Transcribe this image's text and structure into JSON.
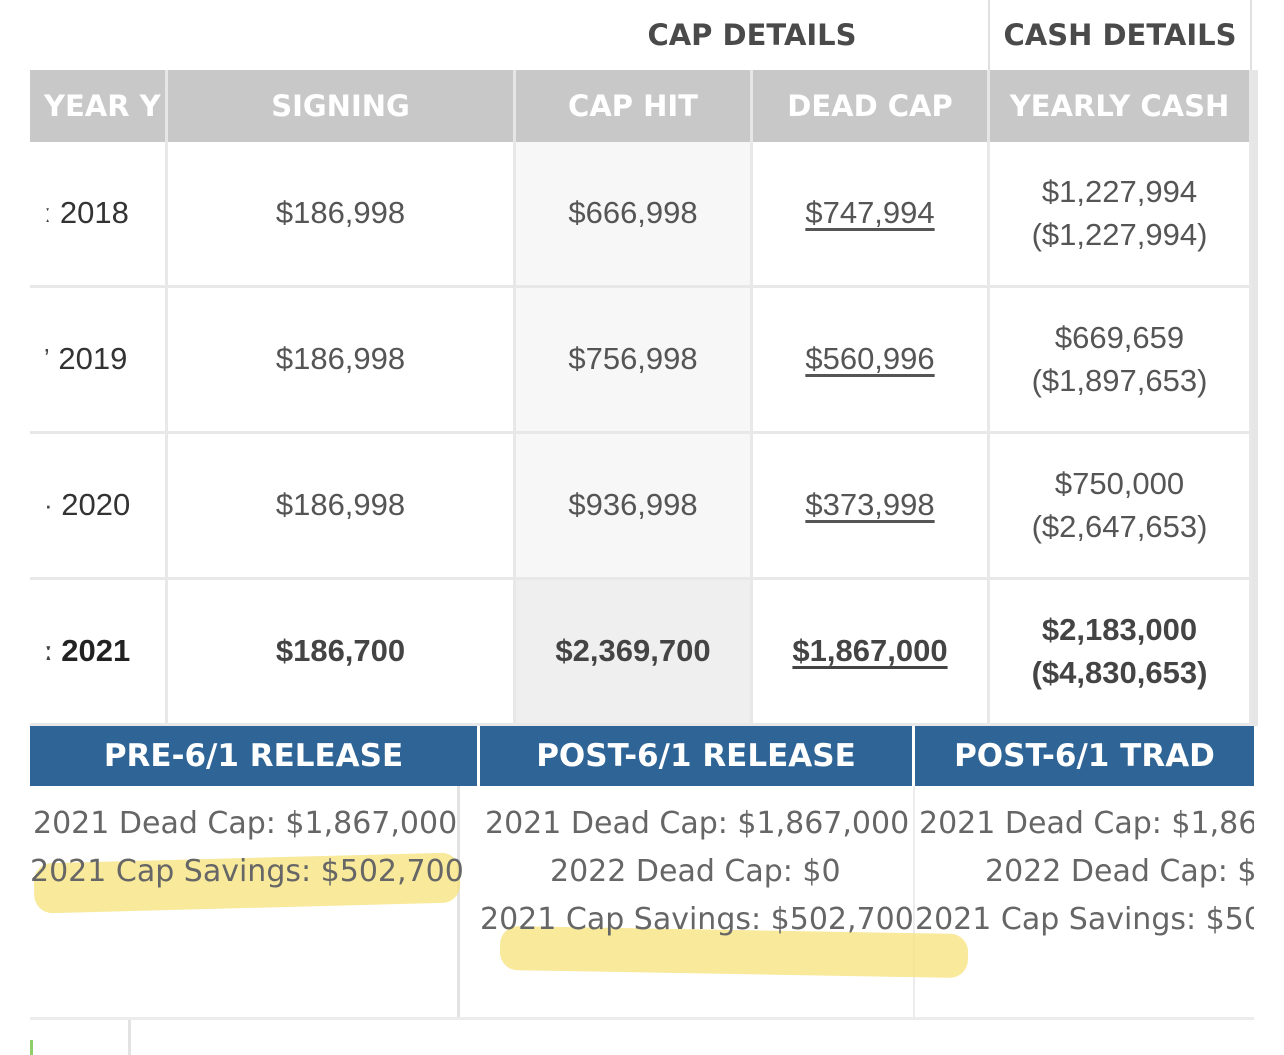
{
  "header_groups": {
    "cap_details": "CAP DETAILS",
    "cash_details": "CASH DETAILS"
  },
  "columns": [
    "YEAR Y",
    "SIGNING",
    "CAP HIT",
    "DEAD CAP",
    "YEARLY CASH"
  ],
  "rows": [
    {
      "year": "2018",
      "signing": "$186,998",
      "cap_hit": "$666,998",
      "dead_cap": "$747,994",
      "yearly_cash": "$1,227,994",
      "cumulative_cash": "($1,227,994)"
    },
    {
      "year": "2019",
      "signing": "$186,998",
      "cap_hit": "$756,998",
      "dead_cap": "$560,996",
      "yearly_cash": "$669,659",
      "cumulative_cash": "($1,897,653)"
    },
    {
      "year": "2020",
      "signing": "$186,998",
      "cap_hit": "$936,998",
      "dead_cap": "$373,998",
      "yearly_cash": "$750,000",
      "cumulative_cash": "($2,647,653)"
    },
    {
      "year": "2021",
      "signing": "$186,700",
      "cap_hit": "$2,369,700",
      "dead_cap": "$1,867,000",
      "yearly_cash": "$2,183,000",
      "cumulative_cash": "($4,830,653)"
    }
  ],
  "scenarios": [
    {
      "title": "PRE-6/1 RELEASE",
      "lines": [
        "2021 Dead Cap: $1,867,000",
        "2021 Cap Savings: $502,700"
      ]
    },
    {
      "title": "POST-6/1 RELEASE",
      "lines": [
        "2021 Dead Cap: $1,867,000",
        "2022 Dead Cap: $0",
        "2021 Cap Savings: $502,700"
      ]
    },
    {
      "title": "POST-6/1 TRAD",
      "lines": [
        "2021 Dead Cap: $1,86",
        "2022 Dead Cap: $",
        "2021 Cap Savings: $50"
      ]
    }
  ],
  "colors": {
    "header_gray": "#c8c8c8",
    "scenario_blue": "#2f6596",
    "highlight": "#f6e27a"
  }
}
